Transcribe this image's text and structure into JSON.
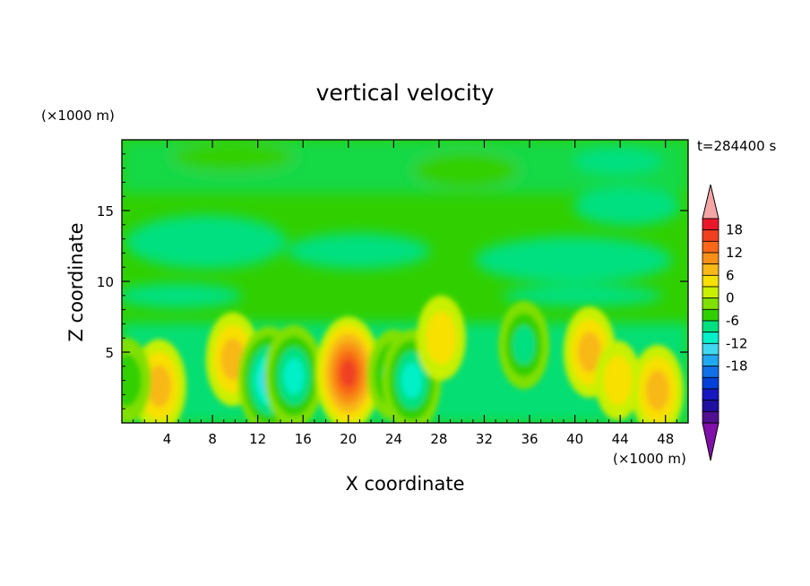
{
  "chart_data": {
    "type": "heatmap",
    "title": "vertical velocity",
    "xlabel": "X coordinate",
    "ylabel": "Z coordinate",
    "x_unit": "(×1000 m)",
    "y_unit": "(×1000 m)",
    "time_label": "t=284400 s",
    "xlim": [
      0,
      50
    ],
    "ylim": [
      0,
      20
    ],
    "x_ticks": [
      4,
      8,
      12,
      16,
      20,
      24,
      28,
      32,
      36,
      40,
      44,
      48
    ],
    "y_ticks": [
      5,
      10,
      15
    ],
    "colorbar": {
      "labels": [
        18,
        12,
        6,
        0,
        -6,
        -12,
        -18
      ],
      "levels": [
        21,
        18,
        15,
        12,
        9,
        6,
        3,
        0,
        -3,
        -6,
        -9,
        -12,
        -15,
        -18,
        -21
      ],
      "colors": [
        "#f4a6a6",
        "#e8182a",
        "#f04020",
        "#f86818",
        "#f89018",
        "#f8b818",
        "#f8e000",
        "#c8f000",
        "#80e000",
        "#30d000",
        "#00e080",
        "#00f0c8",
        "#40d8f0",
        "#20a8f0",
        "#1070e8",
        "#0040d8",
        "#1818c0",
        "#2010a0",
        "#501090",
        "#8010a8"
      ],
      "extend": "both"
    },
    "field": {
      "description_units": "w in m/s, positions in x1000 m",
      "cells": [
        {
          "x": 3.3,
          "z": 2.6,
          "value": 9
        },
        {
          "x": 9.8,
          "z": 4.5,
          "value": 9
        },
        {
          "x": 13.0,
          "z": 3.0,
          "value": -14
        },
        {
          "x": 15.2,
          "z": 3.3,
          "value": -12
        },
        {
          "x": 20.0,
          "z": 3.5,
          "value": 16
        },
        {
          "x": 24.0,
          "z": 3.4,
          "value": -8
        },
        {
          "x": 25.6,
          "z": 3.0,
          "value": -12
        },
        {
          "x": 28.2,
          "z": 6.0,
          "value": 6
        },
        {
          "x": 35.5,
          "z": 5.5,
          "value": -7
        },
        {
          "x": 41.3,
          "z": 5.0,
          "value": 8
        },
        {
          "x": 43.8,
          "z": 3.0,
          "value": 4
        },
        {
          "x": 47.3,
          "z": 2.3,
          "value": 8
        },
        {
          "x": 0.4,
          "z": 3.0,
          "value": -6
        }
      ]
    }
  }
}
